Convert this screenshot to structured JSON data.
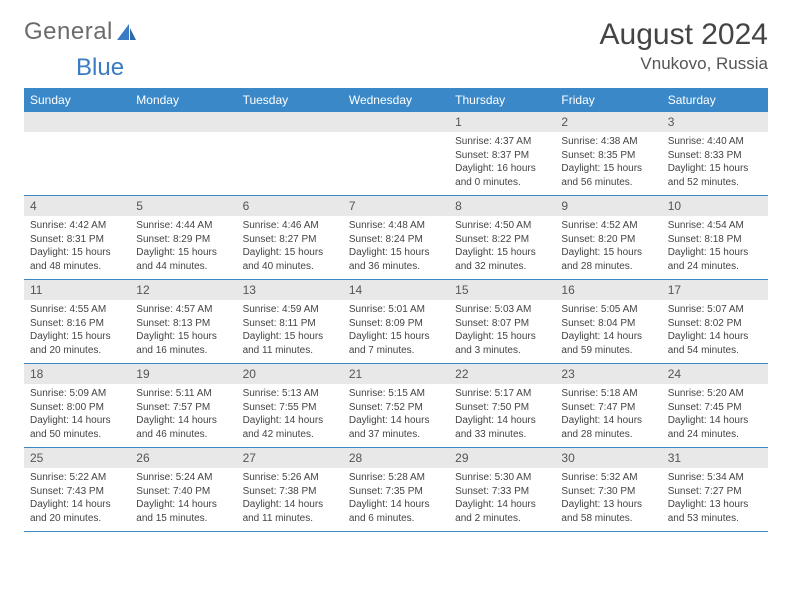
{
  "logo": {
    "word1": "General",
    "word2": "Blue"
  },
  "title": {
    "month": "August 2024",
    "location": "Vnukovo, Russia"
  },
  "colors": {
    "header_bg": "#3a88c8",
    "header_text": "#ffffff",
    "daynum_bg": "#e8e8e8",
    "border": "#3a88c8",
    "logo_gray": "#6b6b6b",
    "logo_blue": "#3a7cc4"
  },
  "weekdays": [
    "Sunday",
    "Monday",
    "Tuesday",
    "Wednesday",
    "Thursday",
    "Friday",
    "Saturday"
  ],
  "weeks": [
    [
      {
        "num": "",
        "text": ""
      },
      {
        "num": "",
        "text": ""
      },
      {
        "num": "",
        "text": ""
      },
      {
        "num": "",
        "text": ""
      },
      {
        "num": "1",
        "text": "Sunrise: 4:37 AM\nSunset: 8:37 PM\nDaylight: 16 hours and 0 minutes."
      },
      {
        "num": "2",
        "text": "Sunrise: 4:38 AM\nSunset: 8:35 PM\nDaylight: 15 hours and 56 minutes."
      },
      {
        "num": "3",
        "text": "Sunrise: 4:40 AM\nSunset: 8:33 PM\nDaylight: 15 hours and 52 minutes."
      }
    ],
    [
      {
        "num": "4",
        "text": "Sunrise: 4:42 AM\nSunset: 8:31 PM\nDaylight: 15 hours and 48 minutes."
      },
      {
        "num": "5",
        "text": "Sunrise: 4:44 AM\nSunset: 8:29 PM\nDaylight: 15 hours and 44 minutes."
      },
      {
        "num": "6",
        "text": "Sunrise: 4:46 AM\nSunset: 8:27 PM\nDaylight: 15 hours and 40 minutes."
      },
      {
        "num": "7",
        "text": "Sunrise: 4:48 AM\nSunset: 8:24 PM\nDaylight: 15 hours and 36 minutes."
      },
      {
        "num": "8",
        "text": "Sunrise: 4:50 AM\nSunset: 8:22 PM\nDaylight: 15 hours and 32 minutes."
      },
      {
        "num": "9",
        "text": "Sunrise: 4:52 AM\nSunset: 8:20 PM\nDaylight: 15 hours and 28 minutes."
      },
      {
        "num": "10",
        "text": "Sunrise: 4:54 AM\nSunset: 8:18 PM\nDaylight: 15 hours and 24 minutes."
      }
    ],
    [
      {
        "num": "11",
        "text": "Sunrise: 4:55 AM\nSunset: 8:16 PM\nDaylight: 15 hours and 20 minutes."
      },
      {
        "num": "12",
        "text": "Sunrise: 4:57 AM\nSunset: 8:13 PM\nDaylight: 15 hours and 16 minutes."
      },
      {
        "num": "13",
        "text": "Sunrise: 4:59 AM\nSunset: 8:11 PM\nDaylight: 15 hours and 11 minutes."
      },
      {
        "num": "14",
        "text": "Sunrise: 5:01 AM\nSunset: 8:09 PM\nDaylight: 15 hours and 7 minutes."
      },
      {
        "num": "15",
        "text": "Sunrise: 5:03 AM\nSunset: 8:07 PM\nDaylight: 15 hours and 3 minutes."
      },
      {
        "num": "16",
        "text": "Sunrise: 5:05 AM\nSunset: 8:04 PM\nDaylight: 14 hours and 59 minutes."
      },
      {
        "num": "17",
        "text": "Sunrise: 5:07 AM\nSunset: 8:02 PM\nDaylight: 14 hours and 54 minutes."
      }
    ],
    [
      {
        "num": "18",
        "text": "Sunrise: 5:09 AM\nSunset: 8:00 PM\nDaylight: 14 hours and 50 minutes."
      },
      {
        "num": "19",
        "text": "Sunrise: 5:11 AM\nSunset: 7:57 PM\nDaylight: 14 hours and 46 minutes."
      },
      {
        "num": "20",
        "text": "Sunrise: 5:13 AM\nSunset: 7:55 PM\nDaylight: 14 hours and 42 minutes."
      },
      {
        "num": "21",
        "text": "Sunrise: 5:15 AM\nSunset: 7:52 PM\nDaylight: 14 hours and 37 minutes."
      },
      {
        "num": "22",
        "text": "Sunrise: 5:17 AM\nSunset: 7:50 PM\nDaylight: 14 hours and 33 minutes."
      },
      {
        "num": "23",
        "text": "Sunrise: 5:18 AM\nSunset: 7:47 PM\nDaylight: 14 hours and 28 minutes."
      },
      {
        "num": "24",
        "text": "Sunrise: 5:20 AM\nSunset: 7:45 PM\nDaylight: 14 hours and 24 minutes."
      }
    ],
    [
      {
        "num": "25",
        "text": "Sunrise: 5:22 AM\nSunset: 7:43 PM\nDaylight: 14 hours and 20 minutes."
      },
      {
        "num": "26",
        "text": "Sunrise: 5:24 AM\nSunset: 7:40 PM\nDaylight: 14 hours and 15 minutes."
      },
      {
        "num": "27",
        "text": "Sunrise: 5:26 AM\nSunset: 7:38 PM\nDaylight: 14 hours and 11 minutes."
      },
      {
        "num": "28",
        "text": "Sunrise: 5:28 AM\nSunset: 7:35 PM\nDaylight: 14 hours and 6 minutes."
      },
      {
        "num": "29",
        "text": "Sunrise: 5:30 AM\nSunset: 7:33 PM\nDaylight: 14 hours and 2 minutes."
      },
      {
        "num": "30",
        "text": "Sunrise: 5:32 AM\nSunset: 7:30 PM\nDaylight: 13 hours and 58 minutes."
      },
      {
        "num": "31",
        "text": "Sunrise: 5:34 AM\nSunset: 7:27 PM\nDaylight: 13 hours and 53 minutes."
      }
    ]
  ]
}
